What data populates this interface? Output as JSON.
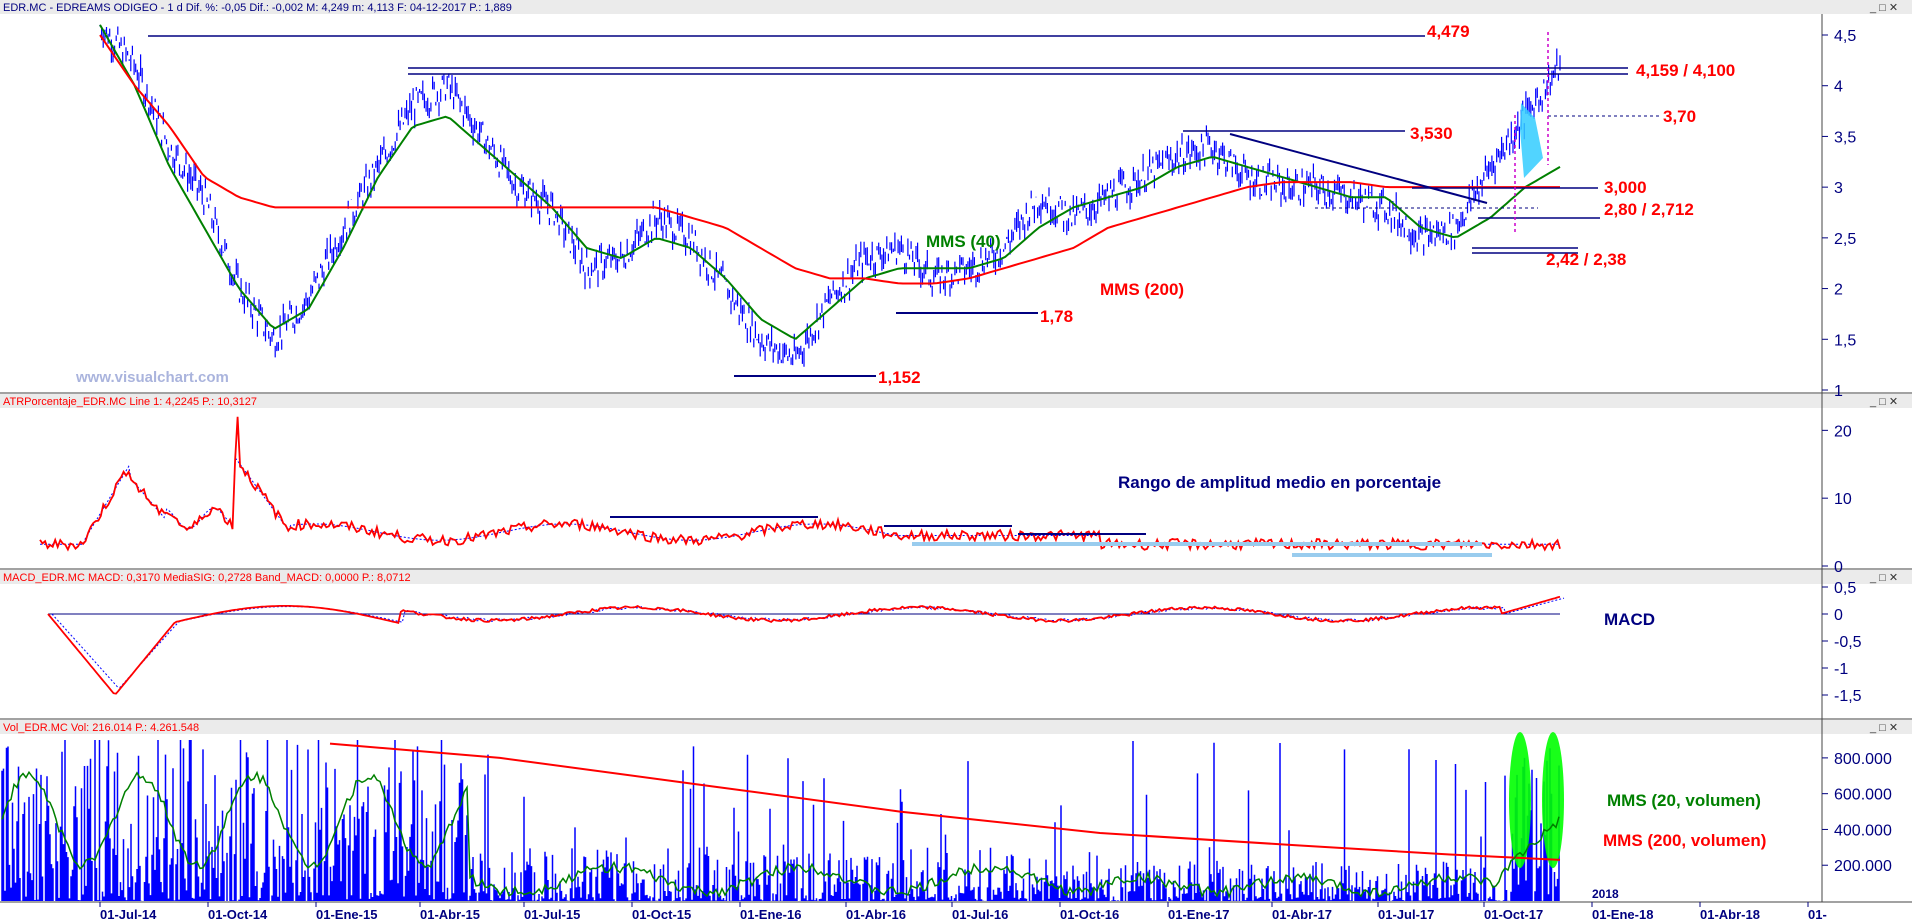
{
  "colors": {
    "price": "#0000ff",
    "mms40": "#008000",
    "mms200": "#ff0000",
    "annotation_red": "#ff0000",
    "annotation_navy": "#000080",
    "highlight_green": "#00ff00",
    "highlight_cyan": "#33ccff"
  },
  "panels": {
    "price": {
      "header": "EDR.MC - EDREAMS ODIGEO -  1 d  Dif. %: -0,05  Dif.: -0,002  M: 4,249  m: 4,113  F: 04-12-2017  P.: 1,889",
      "watermark": "www.visualchart.com",
      "y_ticks": [
        "4,5",
        "4",
        "3,5",
        "3",
        "2,5",
        "2",
        "1,5",
        "1"
      ],
      "labels": {
        "l4479": "4,479",
        "l4159": "4,159 / 4,100",
        "l370": "3,70",
        "l3530": "3,530",
        "l3000": "3,000",
        "l280": "2,80 / 2,712",
        "l242": "2,42 / 2,38",
        "l178": "1,78",
        "l1152": "1,152",
        "mms40": "MMS (40)",
        "mms200": "MMS (200)"
      }
    },
    "atr": {
      "header": "ATRPorcentaje_EDR.MC  Line 1: 4,2245  P.: 10,3127",
      "y_ticks": [
        "20",
        "10",
        "0"
      ],
      "title": "Rango de amplitud medio en porcentaje"
    },
    "macd": {
      "header": "MACD_EDR.MC  MACD: 0,3170  MediaSIG: 0,2728  Band_MACD: 0,0000  P.: 8,0712",
      "y_ticks": [
        "0,5",
        "0",
        "-0,5",
        "-1",
        "-1,5"
      ],
      "title": "MACD"
    },
    "volume": {
      "header": "Vol_EDR.MC  Vol: 216.014  P.: 4.261.548",
      "y_ticks": [
        "800.000",
        "600.000",
        "400.000",
        "200.000"
      ],
      "label_20": "MMS (20, volumen)",
      "label_200": "MMS (200, volumen)",
      "year_label": "2018"
    }
  },
  "x_ticks": [
    "01-Jul-14",
    "01-Oct-14",
    "01-Ene-15",
    "01-Abr-15",
    "01-Jul-15",
    "01-Oct-15",
    "01-Ene-16",
    "01-Abr-16",
    "01-Jul-16",
    "01-Oct-16",
    "01-Ene-17",
    "01-Abr-17",
    "01-Jul-17",
    "01-Oct-17",
    "01-Ene-18",
    "01-Abr-18",
    "01-"
  ],
  "chart_data": {
    "type": "line",
    "x": [
      "2014-06",
      "2014-07",
      "2014-08",
      "2014-09",
      "2014-10",
      "2014-11",
      "2014-12",
      "2015-01",
      "2015-02",
      "2015-03",
      "2015-04",
      "2015-05",
      "2015-06",
      "2015-07",
      "2015-08",
      "2015-09",
      "2015-10",
      "2015-11",
      "2015-12",
      "2016-01",
      "2016-02",
      "2016-03",
      "2016-04",
      "2016-05",
      "2016-06",
      "2016-07",
      "2016-08",
      "2016-09",
      "2016-10",
      "2016-11",
      "2016-12",
      "2017-01",
      "2017-02",
      "2017-03",
      "2017-04",
      "2017-05",
      "2017-06",
      "2017-07",
      "2017-08",
      "2017-09",
      "2017-10",
      "2017-11",
      "2017-12"
    ],
    "series": [
      {
        "values": [
          4.6,
          4.2,
          3.4,
          2.9,
          2.0,
          1.5,
          1.9,
          2.6,
          3.2,
          3.8,
          4.0,
          3.5,
          3.0,
          2.8,
          2.2,
          2.3,
          2.7,
          2.5,
          2.0,
          1.5,
          1.3,
          1.9,
          2.3,
          2.4,
          2.1,
          2.2,
          2.4,
          2.9,
          2.7,
          2.9,
          3.1,
          3.3,
          3.4,
          3.1,
          3.0,
          3.0,
          2.9,
          2.8,
          2.5,
          2.6,
          3.2,
          3.7,
          4.2
        ]
      },
      {
        "values": [
          4.6,
          4.0,
          3.2,
          2.6,
          2.0,
          1.6,
          1.8,
          2.4,
          3.1,
          3.6,
          3.7,
          3.4,
          3.1,
          2.8,
          2.4,
          2.3,
          2.5,
          2.4,
          2.1,
          1.7,
          1.5,
          1.8,
          2.1,
          2.2,
          2.2,
          2.2,
          2.3,
          2.6,
          2.8,
          2.9,
          3.0,
          3.2,
          3.3,
          3.2,
          3.1,
          3.0,
          2.9,
          2.9,
          2.6,
          2.5,
          2.7,
          3.0,
          3.2
        ]
      },
      {
        "values": [
          4.5,
          4.0,
          3.6,
          3.1,
          2.9,
          2.8,
          2.8,
          2.8,
          2.8,
          2.8,
          2.8,
          2.8,
          2.8,
          2.8,
          2.8,
          2.8,
          2.8,
          2.7,
          2.6,
          2.4,
          2.2,
          2.1,
          2.1,
          2.05,
          2.05,
          2.1,
          2.2,
          2.3,
          2.4,
          2.6,
          2.7,
          2.8,
          2.9,
          3.0,
          3.05,
          3.05,
          3.05,
          3.0,
          3.0,
          3.0,
          3.0,
          3.0,
          3.0
        ]
      }
    ],
    "y_range": [
      1,
      4.6
    ]
  }
}
